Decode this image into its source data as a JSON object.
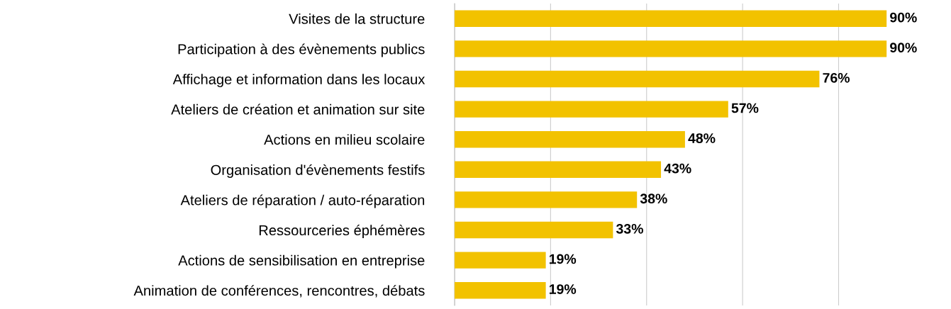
{
  "chart_data": {
    "type": "bar",
    "orientation": "horizontal",
    "categories": [
      "Visites de la structure",
      "Participation à des évènements publics",
      "Affichage et information dans les locaux",
      "Ateliers de création et animation sur site",
      "Actions en milieu scolaire",
      "Organisation d'évènements festifs",
      "Ateliers de réparation / auto-réparation",
      "Ressourceries éphémères",
      "Actions de sensibilisation en entreprise",
      "Animation de conférences, rencontres, débats"
    ],
    "values": [
      90,
      90,
      76,
      57,
      48,
      43,
      38,
      33,
      19,
      19
    ],
    "value_labels": [
      "90%",
      "90%",
      "76%",
      "57%",
      "48%",
      "43%",
      "38%",
      "33%",
      "19%",
      "19%"
    ],
    "color": "#f2c200",
    "xticks": [
      {
        "value": 0,
        "label": null
      },
      {
        "value": 20,
        "label": null
      },
      {
        "value": 40,
        "label": null
      },
      {
        "value": 60,
        "label": null
      },
      {
        "value": 80,
        "label": null
      }
    ],
    "grid": "x",
    "tick_labels": "y"
  }
}
